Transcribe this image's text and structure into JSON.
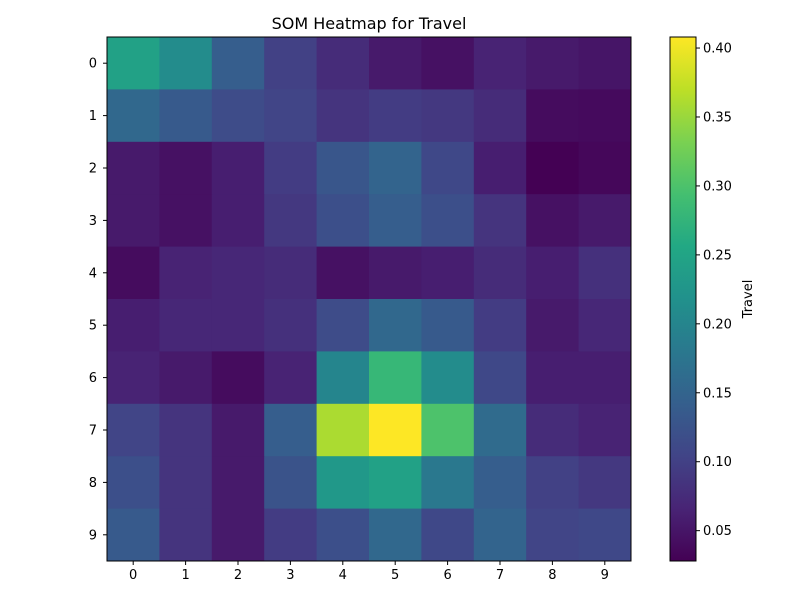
{
  "chart_data": {
    "type": "heatmap",
    "title": "SOM Heatmap for Travel",
    "xlabel": "",
    "ylabel": "",
    "x_categories": [
      "0",
      "1",
      "2",
      "3",
      "4",
      "5",
      "6",
      "7",
      "8",
      "9"
    ],
    "y_categories": [
      "0",
      "1",
      "2",
      "3",
      "4",
      "5",
      "6",
      "7",
      "8",
      "9"
    ],
    "colormap": "viridis",
    "vmin": 0.028,
    "vmax": 0.408,
    "colorbar": {
      "label": "Travel",
      "ticks": [
        0.05,
        0.1,
        0.15,
        0.2,
        0.25,
        0.3,
        0.35,
        0.4
      ],
      "tick_labels": [
        "0.05",
        "0.10",
        "0.15",
        "0.20",
        "0.25",
        "0.30",
        "0.35",
        "0.40"
      ]
    },
    "values": [
      [
        0.245,
        0.21,
        0.14,
        0.1,
        0.075,
        0.055,
        0.045,
        0.065,
        0.055,
        0.05
      ],
      [
        0.155,
        0.135,
        0.115,
        0.105,
        0.085,
        0.095,
        0.09,
        0.075,
        0.04,
        0.038
      ],
      [
        0.055,
        0.045,
        0.06,
        0.095,
        0.13,
        0.15,
        0.11,
        0.06,
        0.028,
        0.035
      ],
      [
        0.055,
        0.045,
        0.06,
        0.09,
        0.12,
        0.14,
        0.12,
        0.085,
        0.045,
        0.055
      ],
      [
        0.04,
        0.065,
        0.07,
        0.075,
        0.045,
        0.055,
        0.06,
        0.075,
        0.06,
        0.08
      ],
      [
        0.06,
        0.07,
        0.07,
        0.08,
        0.115,
        0.155,
        0.135,
        0.095,
        0.055,
        0.07
      ],
      [
        0.065,
        0.055,
        0.04,
        0.065,
        0.2,
        0.28,
        0.21,
        0.11,
        0.06,
        0.06
      ],
      [
        0.105,
        0.085,
        0.055,
        0.14,
        0.36,
        0.408,
        0.3,
        0.16,
        0.075,
        0.065
      ],
      [
        0.12,
        0.085,
        0.055,
        0.125,
        0.23,
        0.245,
        0.18,
        0.14,
        0.1,
        0.09
      ],
      [
        0.135,
        0.085,
        0.055,
        0.095,
        0.12,
        0.155,
        0.11,
        0.15,
        0.105,
        0.11
      ]
    ]
  }
}
